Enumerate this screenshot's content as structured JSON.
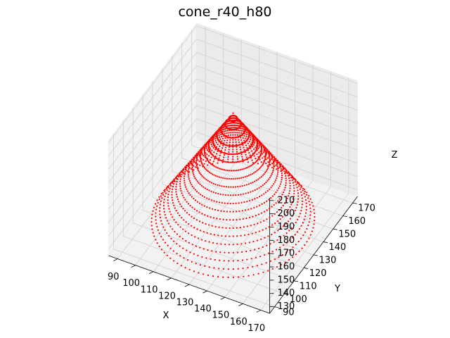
{
  "chart_data": {
    "type": "scatter",
    "projection": "3d",
    "title": "cone_r40_h80",
    "xlabel": "X",
    "ylabel": "Y",
    "zlabel": "Z",
    "x_ticks": [
      "90",
      "100",
      "110",
      "120",
      "130",
      "140",
      "150",
      "160",
      "170"
    ],
    "y_ticks": [
      "90",
      "100",
      "110",
      "120",
      "130",
      "140",
      "150",
      "160",
      "170"
    ],
    "z_ticks": [
      "130",
      "140",
      "150",
      "160",
      "170",
      "180",
      "190",
      "200",
      "210"
    ],
    "xlim": [
      85,
      175
    ],
    "ylim": [
      85,
      175
    ],
    "zlim": [
      125,
      212
    ],
    "grid": true,
    "series": [
      {
        "color": "#ff0000",
        "marker": "point",
        "shape": "cone",
        "base_center": [
          130,
          130,
          130
        ],
        "radius": 40,
        "height": 80,
        "apex": [
          130,
          130,
          210
        ]
      }
    ]
  }
}
